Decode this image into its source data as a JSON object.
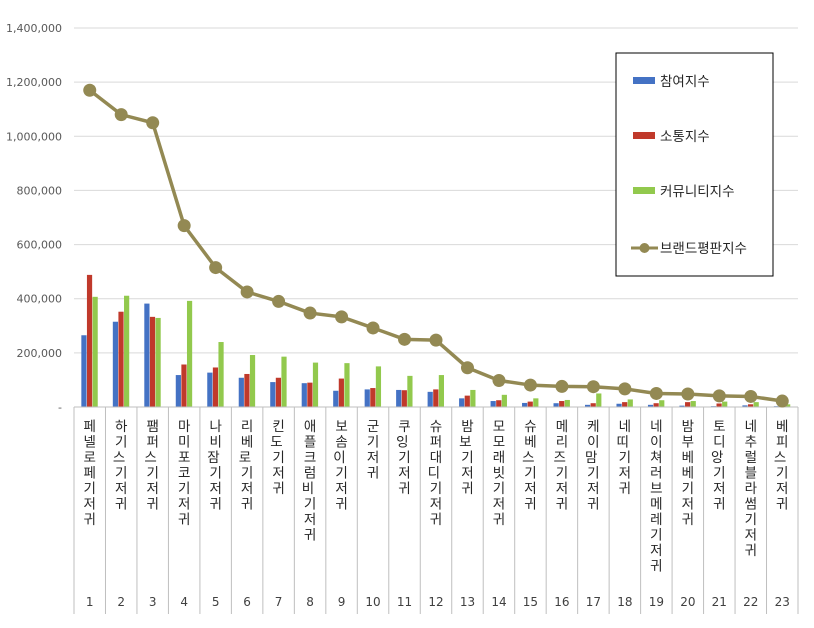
{
  "chart_data": {
    "type": "bar",
    "categories": [
      "페넬로페기저귀",
      "하기스 기저귀",
      "팸퍼스 기저귀",
      "마미포코기저귀",
      "나비잠 기저귀",
      "리베로 기저귀",
      "킨도 기저귀",
      "애플크럼비 기저귀",
      "보솜이 기저귀",
      "군기저귀",
      "쿠잉 기저귀",
      "슈퍼대디 기저귀",
      "밤보 기저귀",
      "모모래빗기저귀",
      "슈베스 기저귀",
      "메리즈 기저귀",
      "케이맘 기저귀",
      "네띠 기저귀",
      "네이쳐러브메레기저귀",
      "밤부베베기저귀",
      "토디앙 기저귀",
      "네추럴블라썸기저귀",
      "베피스 기저귀"
    ],
    "ranks": [
      "1",
      "2",
      "3",
      "4",
      "5",
      "6",
      "7",
      "8",
      "9",
      "10",
      "11",
      "12",
      "13",
      "14",
      "15",
      "16",
      "17",
      "18",
      "19",
      "20",
      "21",
      "22",
      "23"
    ],
    "series": [
      {
        "name": "참여지수",
        "type": "bar",
        "color": "#4472C4",
        "values": [
          265000,
          315000,
          382000,
          118000,
          127000,
          108000,
          92000,
          88000,
          60000,
          65000,
          63000,
          56000,
          32000,
          22000,
          15000,
          14000,
          8000,
          12000,
          8000,
          5000,
          3000,
          6000,
          3000
        ]
      },
      {
        "name": "소통지수",
        "type": "bar",
        "color": "#C0392B",
        "values": [
          488000,
          352000,
          333000,
          157000,
          146000,
          122000,
          108000,
          90000,
          105000,
          70000,
          62000,
          65000,
          42000,
          25000,
          20000,
          22000,
          14000,
          18000,
          14000,
          18000,
          13000,
          10000,
          5000
        ]
      },
      {
        "name": "커뮤니티지수",
        "type": "bar",
        "color": "#92C94D",
        "values": [
          407000,
          411000,
          329000,
          392000,
          240000,
          192000,
          186000,
          164000,
          162000,
          150000,
          115000,
          118000,
          63000,
          45000,
          32000,
          26000,
          50000,
          28000,
          25000,
          22000,
          20000,
          18000,
          10000
        ]
      },
      {
        "name": "브랜드평판지수",
        "type": "line",
        "color": "#938953",
        "values": [
          1170000,
          1080000,
          1050000,
          670000,
          515000,
          425000,
          390000,
          347000,
          333000,
          292000,
          250000,
          247000,
          145000,
          98000,
          81000,
          76000,
          75000,
          67000,
          50000,
          48000,
          41000,
          39000,
          22000
        ]
      }
    ],
    "yticks": [
      "-",
      "200,000",
      "400,000",
      "600,000",
      "800,000",
      "1,000,000",
      "1,200,000",
      "1,400,000"
    ],
    "ylim": [
      0,
      1400000
    ],
    "legend": "right"
  }
}
